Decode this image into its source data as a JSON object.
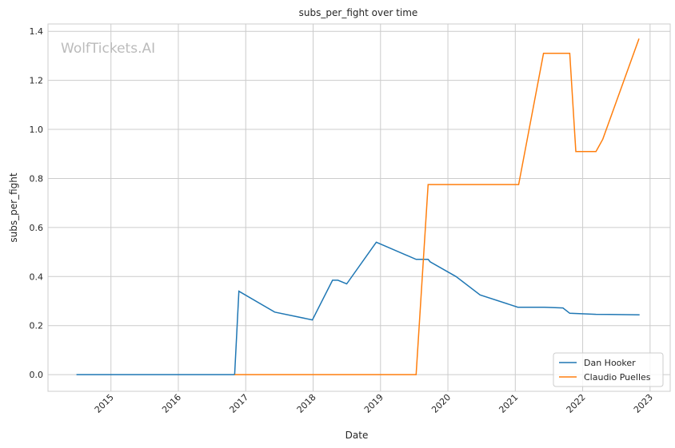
{
  "chart_data": {
    "type": "line",
    "title": "subs_per_fight over time",
    "xlabel": "Date",
    "ylabel": "subs_per_fight",
    "watermark": "WolfTickets.AI",
    "xlim": [
      "2014-01-25",
      "2023-04-20"
    ],
    "ylim": [
      -0.068,
      1.43
    ],
    "x_ticks": [
      "2015",
      "2016",
      "2017",
      "2018",
      "2019",
      "2020",
      "2021",
      "2022",
      "2023"
    ],
    "y_ticks": [
      "0.0",
      "0.2",
      "0.4",
      "0.6",
      "0.8",
      "1.0",
      "1.2",
      "1.4"
    ],
    "grid": true,
    "legend_position": "bottom-right",
    "series": [
      {
        "name": "Dan Hooker",
        "color": "#1f77b4",
        "points": [
          [
            "2014-06-28",
            0
          ],
          [
            "2016-11-02",
            0
          ],
          [
            "2016-11-25",
            0.34
          ],
          [
            "2017-06-07",
            0.255
          ],
          [
            "2017-12-28",
            0.223
          ],
          [
            "2018-04-16",
            0.385
          ],
          [
            "2018-05-15",
            0.385
          ],
          [
            "2018-07-02",
            0.37
          ],
          [
            "2018-12-09",
            0.54
          ],
          [
            "2019-07-13",
            0.47
          ],
          [
            "2019-09-16",
            0.47
          ],
          [
            "2019-09-27",
            0.46
          ],
          [
            "2020-02-14",
            0.4
          ],
          [
            "2020-06-24",
            0.325
          ],
          [
            "2021-01-15",
            0.275
          ],
          [
            "2021-06-07",
            0.275
          ],
          [
            "2021-09-16",
            0.272
          ],
          [
            "2021-10-23",
            0.25
          ],
          [
            "2022-03-14",
            0.246
          ],
          [
            "2022-11-05",
            0.244
          ]
        ]
      },
      {
        "name": "Claudio Puelles",
        "color": "#ff7f0e",
        "points": [
          [
            "2016-11-02",
            0
          ],
          [
            "2019-07-13",
            0
          ],
          [
            "2019-09-16",
            0.775
          ],
          [
            "2021-01-19",
            0.775
          ],
          [
            "2021-06-03",
            1.31
          ],
          [
            "2021-10-23",
            1.31
          ],
          [
            "2021-11-25",
            0.91
          ],
          [
            "2022-03-14",
            0.91
          ],
          [
            "2022-04-20",
            0.96
          ],
          [
            "2022-11-02",
            1.37
          ]
        ]
      }
    ]
  }
}
